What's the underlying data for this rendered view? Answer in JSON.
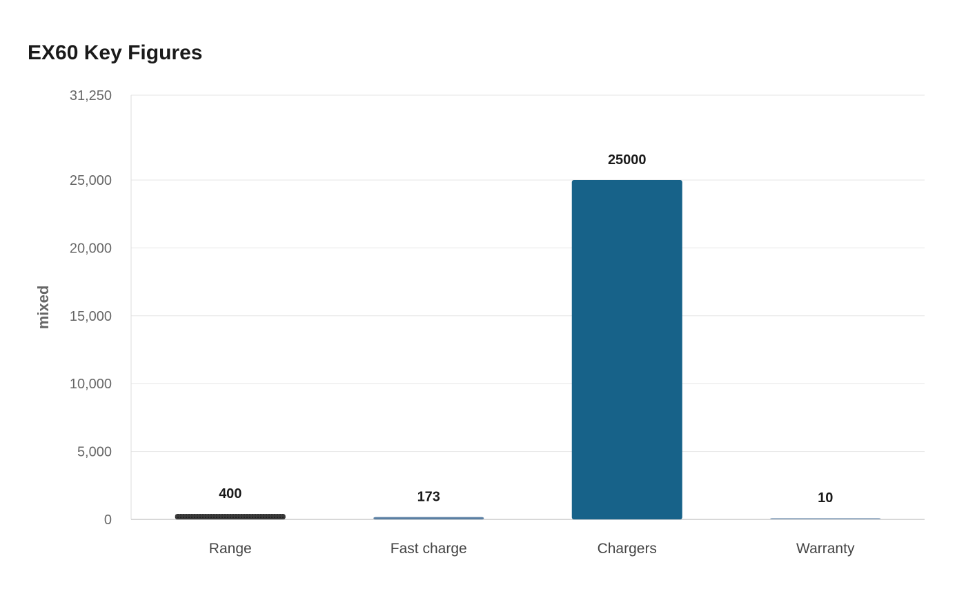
{
  "chart_data": {
    "type": "bar",
    "title": "EX60 Key Figures",
    "xlabel": "",
    "ylabel": "mixed",
    "categories": [
      "Range",
      "Fast charge",
      "Chargers",
      "Warranty"
    ],
    "values": [
      400,
      173,
      25000,
      10
    ],
    "value_labels": [
      "400",
      "173",
      "25000",
      "10"
    ],
    "ylim": [
      0,
      31250
    ],
    "yticks": [
      0,
      5000,
      10000,
      15000,
      20000,
      25000,
      31250
    ],
    "ytick_labels": [
      "0",
      "5,000",
      "10,000",
      "15,000",
      "20,000",
      "25,000",
      "31,250"
    ],
    "grid": true,
    "legend": "none",
    "colors": [
      "#333333",
      "#5a7fa3",
      "#176289",
      "#9fb3c8"
    ]
  }
}
